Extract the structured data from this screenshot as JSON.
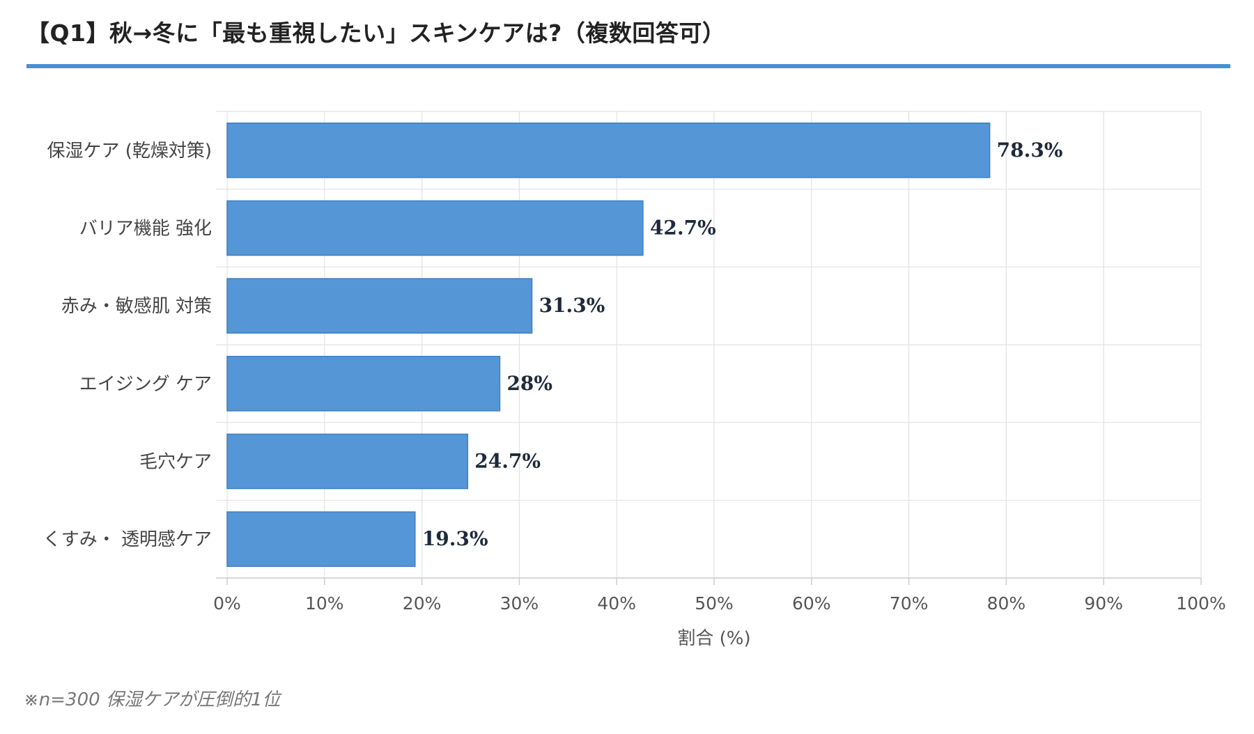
{
  "page": {
    "title": "【Q1】秋→冬に「最も重視したい」スキンケアは?（複数回答可）",
    "footnote": "※n=300 保湿ケアが圧倒的1位"
  },
  "colors": {
    "accent": "#4a8fd4",
    "bar_fill": "#5597d6",
    "bar_stroke": "#3f7fc0",
    "grid": "#e2e2e2",
    "value_text": "#1e2a3a"
  },
  "chart_data": {
    "type": "bar",
    "orientation": "horizontal",
    "categories": [
      "保湿ケア (乾燥対策)",
      "バリア機能 強化",
      "赤み・敏感肌 対策",
      "エイジング ケア",
      "毛穴ケア",
      "くすみ・ 透明感ケア"
    ],
    "values": [
      78.3,
      42.7,
      31.3,
      28,
      24.7,
      19.3
    ],
    "value_labels": [
      "78.3%",
      "42.7%",
      "31.3%",
      "28%",
      "24.7%",
      "19.3%"
    ],
    "xlabel": "割合 (%)",
    "ylabel": "",
    "xlim": [
      0,
      100
    ],
    "xticks": [
      "0%",
      "10%",
      "20%",
      "30%",
      "40%",
      "50%",
      "60%",
      "70%",
      "80%",
      "90%",
      "100%"
    ],
    "grid": true,
    "legend": "none"
  }
}
